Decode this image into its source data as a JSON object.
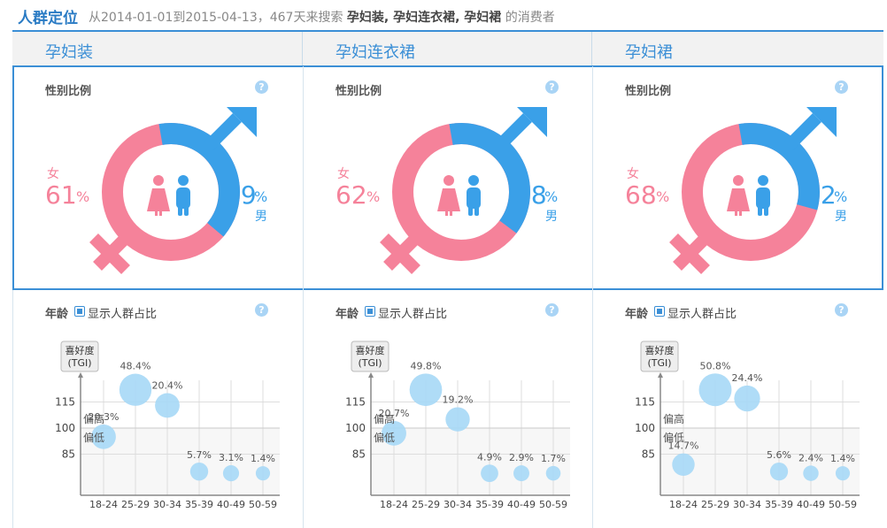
{
  "header": {
    "title": "人群定位",
    "desc_prefix": "从2014-01-01到2015-04-13，467天来搜索",
    "keywords": "孕妇装, 孕妇连衣裙, 孕妇裙",
    "desc_suffix": "的消费者"
  },
  "labels": {
    "gender_section": "性别比例",
    "age_section": "年龄",
    "show_ratio": "显示人群占比",
    "help": "?",
    "female": "女",
    "male": "男",
    "percent": "%",
    "tgi_line1": "喜好度",
    "tgi_line2": "(TGI)",
    "high": "偏高",
    "low": "偏低"
  },
  "colors": {
    "female": "#f5829a",
    "male": "#3aa0e8",
    "accent": "#3b8fd6",
    "bubble": "#a6d8f6"
  },
  "chart_data": [
    {
      "type": "scatter",
      "title": "孕妇装",
      "female_pct": 61,
      "male_pct": 39,
      "categories": [
        "18-24",
        "25-29",
        "30-34",
        "35-39",
        "40-49",
        "50-59"
      ],
      "y_ticks": [
        85,
        100,
        115
      ],
      "ylabel": "喜好度 (TGI)",
      "values": [
        95,
        122,
        113,
        75,
        74,
        74
      ],
      "share": [
        "20.3%",
        "48.4%",
        "20.4%",
        "5.7%",
        "3.1%",
        "1.4%"
      ],
      "share_num": [
        20.3,
        48.4,
        20.4,
        5.7,
        3.1,
        1.4
      ]
    },
    {
      "type": "scatter",
      "title": "孕妇连衣裙",
      "female_pct": 62,
      "male_pct": 38,
      "categories": [
        "18-24",
        "25-29",
        "30-34",
        "35-39",
        "40-49",
        "50-59"
      ],
      "y_ticks": [
        85,
        100,
        115
      ],
      "ylabel": "喜好度 (TGI)",
      "values": [
        97,
        122,
        105,
        74,
        74,
        74
      ],
      "share": [
        "20.7%",
        "49.8%",
        "19.2%",
        "4.9%",
        "2.9%",
        "1.7%"
      ],
      "share_num": [
        20.7,
        49.8,
        19.2,
        4.9,
        2.9,
        1.7
      ]
    },
    {
      "type": "scatter",
      "title": "孕妇裙",
      "female_pct": 68,
      "male_pct": 32,
      "categories": [
        "18-24",
        "25-29",
        "30-34",
        "35-39",
        "40-49",
        "50-59"
      ],
      "y_ticks": [
        85,
        100,
        115
      ],
      "ylabel": "喜好度 (TGI)",
      "values": [
        79,
        122,
        117,
        75,
        74,
        74
      ],
      "share": [
        "14.7%",
        "50.8%",
        "24.4%",
        "5.6%",
        "2.4%",
        "1.4%"
      ],
      "share_num": [
        14.7,
        50.8,
        24.4,
        5.6,
        2.4,
        1.4
      ]
    }
  ]
}
